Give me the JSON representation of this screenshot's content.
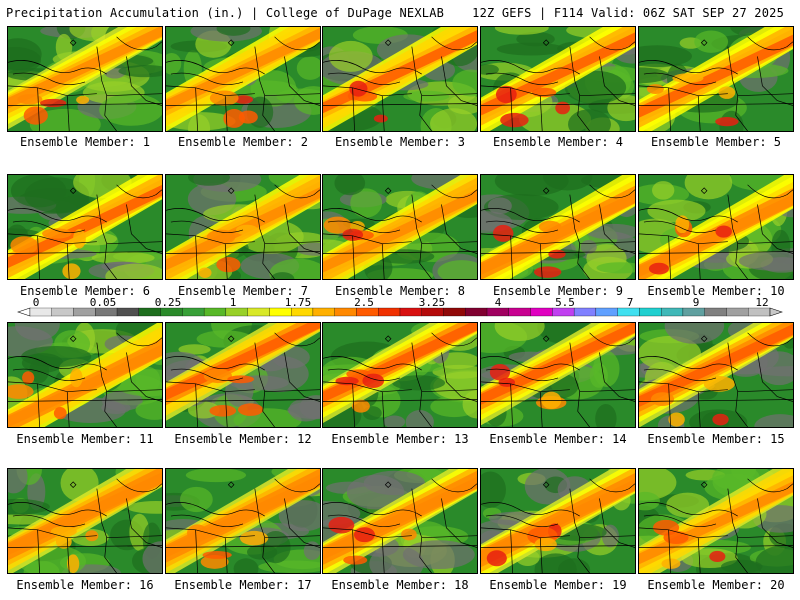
{
  "header": {
    "title_left": "Precipitation Accumulation (in.) | College of DuPage NEXLAB",
    "title_right": "12Z GEFS | F114 Valid: 06Z SAT SEP 27 2025"
  },
  "panels": [
    {
      "caption": "Ensemble Member: 1",
      "member": 1
    },
    {
      "caption": "Ensemble Member: 2",
      "member": 2
    },
    {
      "caption": "Ensemble Member: 3",
      "member": 3
    },
    {
      "caption": "Ensemble Member: 4",
      "member": 4
    },
    {
      "caption": "Ensemble Member: 5",
      "member": 5
    },
    {
      "caption": "Ensemble Member: 6",
      "member": 6
    },
    {
      "caption": "Ensemble Member: 7",
      "member": 7
    },
    {
      "caption": "Ensemble Member: 8",
      "member": 8
    },
    {
      "caption": "Ensemble Member: 9",
      "member": 9
    },
    {
      "caption": "Ensemble Member: 10",
      "member": 10
    },
    {
      "caption": "Ensemble Member: 11",
      "member": 11
    },
    {
      "caption": "Ensemble Member: 12",
      "member": 12
    },
    {
      "caption": "Ensemble Member: 13",
      "member": 13
    },
    {
      "caption": "Ensemble Member: 14",
      "member": 14
    },
    {
      "caption": "Ensemble Member: 15",
      "member": 15
    },
    {
      "caption": "Ensemble Member: 16",
      "member": 16
    },
    {
      "caption": "Ensemble Member: 17",
      "member": 17
    },
    {
      "caption": "Ensemble Member: 18",
      "member": 18
    },
    {
      "caption": "Ensemble Member: 19",
      "member": 19
    },
    {
      "caption": "Ensemble Member: 20",
      "member": 20
    }
  ],
  "colorbar": {
    "labels": [
      "0",
      "0.05",
      "0.25",
      "1",
      "1.75",
      "2.5",
      "3.25",
      "4",
      "5.5",
      "7",
      "9",
      "12"
    ],
    "colors": [
      "#e8e8e8",
      "#c8c8c8",
      "#a0a0a0",
      "#787878",
      "#505050",
      "#1e6e1e",
      "#2a8a2a",
      "#38a038",
      "#58b828",
      "#98d028",
      "#d8e828",
      "#ffff00",
      "#ffd800",
      "#ffb000",
      "#ff8800",
      "#ff5a00",
      "#f03000",
      "#d81010",
      "#b40a0a",
      "#900808",
      "#800030",
      "#a00060",
      "#c80090",
      "#e000c0",
      "#c040f0",
      "#8080ff",
      "#60a0ff",
      "#40e0f0",
      "#20d0d0",
      "#40b8b8",
      "#60a0a0",
      "#808080",
      "#a0a0a0",
      "#c0c0c0"
    ]
  }
}
